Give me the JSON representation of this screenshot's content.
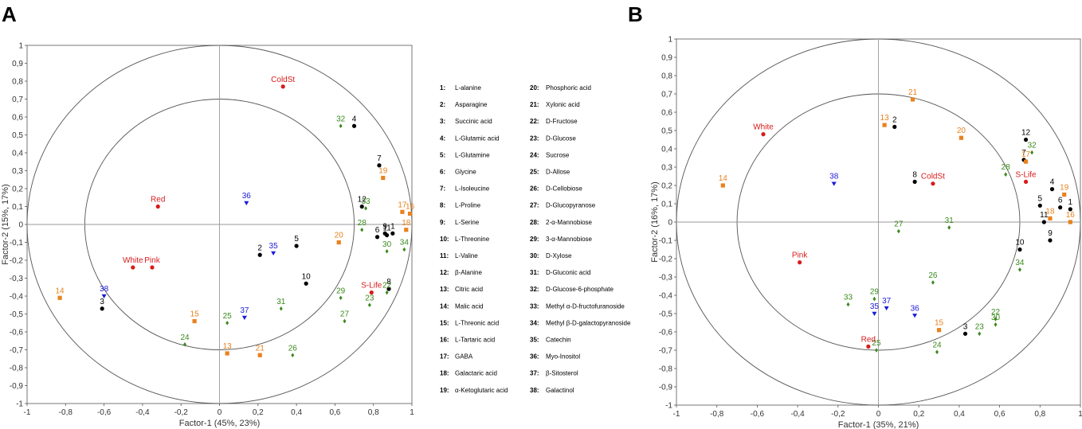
{
  "colors": {
    "group1": "#000000",
    "group2": "#e8821e",
    "group3": "#3b8a1e",
    "group4": "#1a1adb",
    "group5": "#d81b1b"
  },
  "legend": [
    {
      "num": "1:",
      "name": "L-alanine"
    },
    {
      "num": "2:",
      "name": "Asparagine"
    },
    {
      "num": "3:",
      "name": "Succinic acid"
    },
    {
      "num": "4:",
      "name": "L-Glutamic acid"
    },
    {
      "num": "5:",
      "name": "L-Glutamine"
    },
    {
      "num": "6:",
      "name": "Glycine"
    },
    {
      "num": "7:",
      "name": "L-Isoleucine"
    },
    {
      "num": "8:",
      "name": "L-Proline"
    },
    {
      "num": "9:",
      "name": "L-Serine"
    },
    {
      "num": "10:",
      "name": "L-Threonine"
    },
    {
      "num": "11:",
      "name": "L-Valine"
    },
    {
      "num": "12:",
      "name": "β-Alanine"
    },
    {
      "num": "13:",
      "name": "Citric acid"
    },
    {
      "num": "14:",
      "name": "Malic acid"
    },
    {
      "num": "15:",
      "name": "L-Threonic acid"
    },
    {
      "num": "16:",
      "name": "L-Tartaric acid"
    },
    {
      "num": "17:",
      "name": "GABA"
    },
    {
      "num": "18:",
      "name": "Galactaric acid"
    },
    {
      "num": "19:",
      "name": "α-Ketoglutaric acid"
    },
    {
      "num": "20:",
      "name": "Phosphoric acid"
    },
    {
      "num": "21:",
      "name": "Xylonic acid"
    },
    {
      "num": "22:",
      "name": "D-Fructose"
    },
    {
      "num": "23:",
      "name": "D-Glucose"
    },
    {
      "num": "24:",
      "name": "Sucrose"
    },
    {
      "num": "25:",
      "name": "D-Allose"
    },
    {
      "num": "26:",
      "name": "D-Cellobiose"
    },
    {
      "num": "27:",
      "name": "D-Glucopyranose"
    },
    {
      "num": "28:",
      "name": "2-α-Mannobiose"
    },
    {
      "num": "29:",
      "name": "3-α-Mannobiose"
    },
    {
      "num": "30:",
      "name": "D-Xylose"
    },
    {
      "num": "31:",
      "name": "D-Gluconic acid"
    },
    {
      "num": "32:",
      "name": "D-Glucose-6-phosphate"
    },
    {
      "num": "33:",
      "name": "Methyl α-D-fructofuranoside"
    },
    {
      "num": "34:",
      "name": "Methyl β-D-galactopyranoside"
    },
    {
      "num": "35:",
      "name": "Catechin"
    },
    {
      "num": "36:",
      "name": "Myo-Inositol"
    },
    {
      "num": "37:",
      "name": "β-Sitosterol"
    },
    {
      "num": "38:",
      "name": "Galactinol"
    }
  ],
  "chart_data": [
    {
      "type": "scatter",
      "panel": "A",
      "xlabel": "Factor-1 (45%, 23%)",
      "ylabel": "Factor-2 (15%, 17%)",
      "xlim": [
        -1,
        1
      ],
      "ylim": [
        -1,
        1
      ],
      "xticks": [
        "-1",
        "-0,8",
        "-0,6",
        "-0,4",
        "-0,2",
        "0",
        "0,2",
        "0,4",
        "0,6",
        "0,8",
        "1"
      ],
      "yticks": [
        "1",
        "0,9",
        "0,8",
        "0,7",
        "0,6",
        "0,5",
        "0,4",
        "0,3",
        "0,2",
        "0,1",
        "0",
        "-0,1",
        "-0,2",
        "-0,3",
        "-0,4",
        "-0,5",
        "-0,6",
        "-0,7",
        "-0,8",
        "-0,9",
        "-1"
      ],
      "circles": [
        1.0,
        0.7
      ],
      "points": [
        {
          "label": "1",
          "g": 1,
          "x": 0.9,
          "y": -0.05
        },
        {
          "label": "2",
          "g": 1,
          "x": 0.21,
          "y": -0.17
        },
        {
          "label": "3",
          "g": 1,
          "x": -0.61,
          "y": -0.47
        },
        {
          "label": "4",
          "g": 1,
          "x": 0.7,
          "y": 0.55
        },
        {
          "label": "5",
          "g": 1,
          "x": 0.4,
          "y": -0.12
        },
        {
          "label": "6",
          "g": 1,
          "x": 0.82,
          "y": -0.07
        },
        {
          "label": "7",
          "g": 1,
          "x": 0.83,
          "y": 0.33
        },
        {
          "label": "8",
          "g": 1,
          "x": 0.88,
          "y": -0.36
        },
        {
          "label": "9",
          "g": 1,
          "x": 0.86,
          "y": -0.05
        },
        {
          "label": "10",
          "g": 1,
          "x": 0.45,
          "y": -0.33
        },
        {
          "label": "11",
          "g": 1,
          "x": 0.87,
          "y": -0.06
        },
        {
          "label": "12",
          "g": 1,
          "x": 0.74,
          "y": 0.1
        },
        {
          "label": "13",
          "g": 2,
          "x": 0.04,
          "y": -0.72
        },
        {
          "label": "14",
          "g": 2,
          "x": -0.83,
          "y": -0.41
        },
        {
          "label": "15",
          "g": 2,
          "x": -0.13,
          "y": -0.54
        },
        {
          "label": "16",
          "g": 2,
          "x": 0.99,
          "y": 0.06
        },
        {
          "label": "17",
          "g": 2,
          "x": 0.95,
          "y": 0.07
        },
        {
          "label": "18",
          "g": 2,
          "x": 0.97,
          "y": -0.03
        },
        {
          "label": "19",
          "g": 2,
          "x": 0.85,
          "y": 0.26
        },
        {
          "label": "20",
          "g": 2,
          "x": 0.62,
          "y": -0.1
        },
        {
          "label": "21",
          "g": 2,
          "x": 0.21,
          "y": -0.73
        },
        {
          "label": "22",
          "g": 3,
          "x": 0.87,
          "y": -0.38
        },
        {
          "label": "23",
          "g": 3,
          "x": 0.78,
          "y": -0.45
        },
        {
          "label": "24",
          "g": 3,
          "x": -0.18,
          "y": -0.67
        },
        {
          "label": "25",
          "g": 3,
          "x": 0.04,
          "y": -0.55
        },
        {
          "label": "26",
          "g": 3,
          "x": 0.38,
          "y": -0.73
        },
        {
          "label": "27",
          "g": 3,
          "x": 0.65,
          "y": -0.54
        },
        {
          "label": "28",
          "g": 3,
          "x": 0.74,
          "y": -0.03
        },
        {
          "label": "29",
          "g": 3,
          "x": 0.63,
          "y": -0.41
        },
        {
          "label": "30",
          "g": 3,
          "x": 0.87,
          "y": -0.15
        },
        {
          "label": "31",
          "g": 3,
          "x": 0.32,
          "y": -0.47
        },
        {
          "label": "32",
          "g": 3,
          "x": 0.63,
          "y": 0.55
        },
        {
          "label": "33",
          "g": 3,
          "x": 0.76,
          "y": 0.09
        },
        {
          "label": "34",
          "g": 3,
          "x": 0.96,
          "y": -0.14
        },
        {
          "label": "35",
          "g": 4,
          "x": 0.28,
          "y": -0.16
        },
        {
          "label": "36",
          "g": 4,
          "x": 0.14,
          "y": 0.12
        },
        {
          "label": "37",
          "g": 4,
          "x": 0.13,
          "y": -0.52
        },
        {
          "label": "38",
          "g": 4,
          "x": -0.6,
          "y": -0.4
        },
        {
          "label": "ColdSt",
          "g": 5,
          "x": 0.33,
          "y": 0.77
        },
        {
          "label": "Red",
          "g": 5,
          "x": -0.32,
          "y": 0.1
        },
        {
          "label": "White",
          "g": 5,
          "x": -0.45,
          "y": -0.24
        },
        {
          "label": "Pink",
          "g": 5,
          "x": -0.35,
          "y": -0.24
        },
        {
          "label": "S-Life",
          "g": 5,
          "x": 0.79,
          "y": -0.38
        }
      ]
    },
    {
      "type": "scatter",
      "panel": "B",
      "xlabel": "Factor-1 (35%, 21%)",
      "ylabel": "Factor-2 (16%, 17%)",
      "xlim": [
        -1,
        1
      ],
      "ylim": [
        -1,
        1
      ],
      "xticks": [
        "-1",
        "-0,8",
        "-0,6",
        "-0,4",
        "-0,2",
        "0",
        "0,2",
        "0,4",
        "0,6",
        "0,8",
        "1"
      ],
      "yticks": [
        "1",
        "0,9",
        "0,8",
        "0,7",
        "0,6",
        "0,5",
        "0,4",
        "0,3",
        "0,2",
        "0,1",
        "0",
        "-0,1",
        "-0,2",
        "-0,3",
        "-0,4",
        "-0,5",
        "-0,6",
        "-0,7",
        "-0,8",
        "-0,9",
        "-1"
      ],
      "circles": [
        1.0,
        0.7
      ],
      "points": [
        {
          "label": "1",
          "g": 1,
          "x": 0.95,
          "y": 0.07
        },
        {
          "label": "2",
          "g": 1,
          "x": 0.08,
          "y": 0.52
        },
        {
          "label": "3",
          "g": 1,
          "x": 0.43,
          "y": -0.61
        },
        {
          "label": "4",
          "g": 1,
          "x": 0.86,
          "y": 0.18
        },
        {
          "label": "5",
          "g": 1,
          "x": 0.8,
          "y": 0.09
        },
        {
          "label": "6",
          "g": 1,
          "x": 0.9,
          "y": 0.08
        },
        {
          "label": "7",
          "g": 1,
          "x": 0.72,
          "y": 0.34
        },
        {
          "label": "8",
          "g": 1,
          "x": 0.18,
          "y": 0.22
        },
        {
          "label": "9",
          "g": 1,
          "x": 0.85,
          "y": -0.1
        },
        {
          "label": "10",
          "g": 1,
          "x": 0.7,
          "y": -0.15
        },
        {
          "label": "11",
          "g": 1,
          "x": 0.82,
          "y": 0.0
        },
        {
          "label": "12",
          "g": 1,
          "x": 0.73,
          "y": 0.45
        },
        {
          "label": "13",
          "g": 2,
          "x": 0.03,
          "y": 0.53
        },
        {
          "label": "14",
          "g": 2,
          "x": -0.77,
          "y": 0.2
        },
        {
          "label": "15",
          "g": 2,
          "x": 0.3,
          "y": -0.59
        },
        {
          "label": "16",
          "g": 2,
          "x": 0.95,
          "y": 0.0
        },
        {
          "label": "17",
          "g": 2,
          "x": 0.73,
          "y": 0.33
        },
        {
          "label": "18",
          "g": 2,
          "x": 0.85,
          "y": 0.02
        },
        {
          "label": "19",
          "g": 2,
          "x": 0.92,
          "y": 0.15
        },
        {
          "label": "20",
          "g": 2,
          "x": 0.41,
          "y": 0.46
        },
        {
          "label": "21",
          "g": 2,
          "x": 0.17,
          "y": 0.67
        },
        {
          "label": "22",
          "g": 3,
          "x": 0.58,
          "y": -0.53
        },
        {
          "label": "23",
          "g": 3,
          "x": 0.5,
          "y": -0.61
        },
        {
          "label": "24",
          "g": 3,
          "x": 0.29,
          "y": -0.71
        },
        {
          "label": "25",
          "g": 3,
          "x": -0.01,
          "y": -0.7
        },
        {
          "label": "26",
          "g": 3,
          "x": 0.27,
          "y": -0.33
        },
        {
          "label": "27",
          "g": 3,
          "x": 0.1,
          "y": -0.05
        },
        {
          "label": "28",
          "g": 3,
          "x": 0.63,
          "y": 0.26
        },
        {
          "label": "29",
          "g": 3,
          "x": -0.02,
          "y": -0.42
        },
        {
          "label": "30",
          "g": 3,
          "x": 0.58,
          "y": -0.56
        },
        {
          "label": "31",
          "g": 3,
          "x": 0.35,
          "y": -0.03
        },
        {
          "label": "32",
          "g": 3,
          "x": 0.76,
          "y": 0.38
        },
        {
          "label": "33",
          "g": 3,
          "x": -0.15,
          "y": -0.45
        },
        {
          "label": "34",
          "g": 3,
          "x": 0.7,
          "y": -0.26
        },
        {
          "label": "35",
          "g": 4,
          "x": -0.02,
          "y": -0.5
        },
        {
          "label": "36",
          "g": 4,
          "x": 0.18,
          "y": -0.51
        },
        {
          "label": "37",
          "g": 4,
          "x": 0.04,
          "y": -0.47
        },
        {
          "label": "38",
          "g": 4,
          "x": -0.22,
          "y": 0.21
        },
        {
          "label": "ColdSt",
          "g": 5,
          "x": 0.27,
          "y": 0.21
        },
        {
          "label": "White",
          "g": 5,
          "x": -0.57,
          "y": 0.48
        },
        {
          "label": "S-Life",
          "g": 5,
          "x": 0.73,
          "y": 0.22
        },
        {
          "label": "Pink",
          "g": 5,
          "x": -0.39,
          "y": -0.22
        },
        {
          "label": "Red",
          "g": 5,
          "x": -0.05,
          "y": -0.68
        }
      ]
    }
  ],
  "panels": [
    "A",
    "B"
  ]
}
